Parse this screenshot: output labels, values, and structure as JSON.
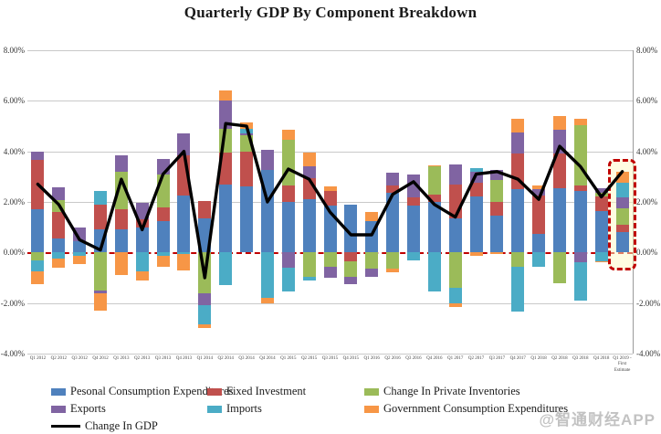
{
  "title": "Quarterly GDP By Component Breakdown",
  "watermark": "@智通财经APP",
  "colors": {
    "pce": "#4f81bd",
    "fixed": "#c0504d",
    "inventories": "#9bbb59",
    "exports": "#8064a2",
    "imports": "#4bacc6",
    "government": "#f79646",
    "gdp_line": "#000000",
    "zero_line": "#c00000",
    "grid": "#c9c9c9",
    "highlight_border": "#c00000",
    "highlight_fill": "#fff9c4"
  },
  "legend": {
    "items": [
      "pce",
      "fixed",
      "inventories",
      "exports",
      "imports",
      "government",
      "gdp_line"
    ]
  },
  "chart_data": {
    "type": "bar",
    "subtype": "stacked-bar-with-line",
    "title": "Quarterly GDP By Component Breakdown",
    "xlabel": "",
    "ylabel": "",
    "ylim": [
      -4,
      8
    ],
    "grid": true,
    "legend_position": "bottom",
    "y_ticks": [
      {
        "value": 8,
        "label": "8.00%"
      },
      {
        "value": 6,
        "label": "6.00%"
      },
      {
        "value": 4,
        "label": "4.00%"
      },
      {
        "value": 2,
        "label": "2.00%"
      },
      {
        "value": 0,
        "label": "0.00%"
      },
      {
        "value": -2,
        "label": "-2.00%"
      },
      {
        "value": -4,
        "label": "-4.00%"
      }
    ],
    "categories": [
      "Q1 2012",
      "Q2 2012",
      "Q3 2012",
      "Q4 2012",
      "Q1 2013",
      "Q2 2013",
      "Q3 2013",
      "Q4 2013",
      "Q1 2014",
      "Q2 2014",
      "Q3 2014",
      "Q4 2014",
      "Q1 2015",
      "Q2 2015",
      "Q3 2015",
      "Q4 2015",
      "Q1 2016",
      "Q2 2016",
      "Q3 2016",
      "Q4 2016",
      "Q1 2017",
      "Q2 2017",
      "Q3 2017",
      "Q4 2017",
      "Q1 2018",
      "Q2 2018",
      "Q3 2018",
      "Q4 2018",
      "Q1 2019 - First Estimate"
    ],
    "series": [
      {
        "key": "pce",
        "name": "Pesonal Consumption Expenditures",
        "values": [
          1.7,
          0.55,
          0.45,
          0.9,
          0.9,
          1.0,
          1.25,
          2.25,
          1.35,
          2.7,
          2.6,
          3.25,
          2.0,
          2.1,
          1.85,
          1.9,
          1.25,
          2.35,
          1.85,
          2.0,
          1.35,
          2.2,
          1.45,
          2.5,
          0.75,
          2.55,
          2.45,
          1.65,
          0.82
        ]
      },
      {
        "key": "fixed",
        "name": "Fixed Investment",
        "values": [
          1.95,
          1.05,
          0.0,
          1.0,
          0.8,
          0.3,
          0.55,
          1.6,
          0.7,
          1.25,
          1.4,
          0.0,
          0.65,
          0.85,
          0.6,
          -0.35,
          0.0,
          0.3,
          0.33,
          0.3,
          1.35,
          0.55,
          0.55,
          1.4,
          1.5,
          1.35,
          0.2,
          0.55,
          0.27
        ]
      },
      {
        "key": "inventories",
        "name": "Change In Private Inventories",
        "values": [
          -0.3,
          0.48,
          0.0,
          -1.5,
          1.5,
          0.0,
          1.3,
          0.0,
          -1.6,
          0.95,
          0.65,
          0.0,
          1.8,
          -0.95,
          -0.55,
          -0.6,
          -0.65,
          -0.65,
          0.0,
          1.1,
          -1.4,
          0.0,
          0.85,
          -0.55,
          0.0,
          -1.2,
          2.4,
          0.15,
          0.65
        ]
      },
      {
        "key": "exports",
        "name": "Exports",
        "values": [
          0.35,
          0.5,
          0.55,
          -0.1,
          0.65,
          0.65,
          0.6,
          0.85,
          -0.5,
          1.1,
          0.05,
          0.8,
          -0.6,
          0.45,
          -0.45,
          -0.3,
          -0.3,
          0.5,
          0.9,
          0.0,
          0.8,
          0.45,
          0.42,
          0.85,
          0.25,
          0.95,
          -0.4,
          0.2,
          0.45
        ]
      },
      {
        "key": "imports",
        "name": "Imports",
        "values": [
          -0.45,
          -0.25,
          -0.15,
          0.55,
          0.0,
          -0.75,
          -0.15,
          -0.05,
          -0.75,
          -1.3,
          0.2,
          -1.8,
          -0.95,
          -0.15,
          0.0,
          0.0,
          0.0,
          0.0,
          -0.3,
          -1.55,
          -0.6,
          0.15,
          0.0,
          -1.8,
          -0.55,
          0.0,
          -1.5,
          -0.35,
          0.58
        ]
      },
      {
        "key": "government",
        "name": "Government Consumption Expenditures",
        "values": [
          -0.5,
          -0.35,
          -0.3,
          -0.7,
          -0.9,
          -0.35,
          -0.4,
          -0.65,
          -0.15,
          0.4,
          0.25,
          -0.2,
          0.4,
          0.55,
          0.15,
          0.0,
          0.35,
          -0.15,
          0.0,
          0.05,
          -0.15,
          -0.15,
          -0.05,
          0.55,
          0.15,
          0.55,
          0.25,
          -0.05,
          0.41
        ]
      }
    ],
    "line_series": {
      "key": "gdp_line",
      "name": "Change In GDP",
      "values": [
        2.7,
        1.9,
        0.5,
        0.1,
        2.9,
        0.9,
        3.1,
        4.0,
        -1.0,
        5.1,
        5.0,
        2.0,
        3.3,
        2.9,
        1.6,
        0.7,
        0.7,
        2.3,
        2.8,
        1.9,
        1.4,
        3.1,
        3.2,
        2.9,
        2.1,
        4.2,
        3.4,
        2.2,
        3.2
      ]
    },
    "highlight": {
      "category": "Q1 2019 - First Estimate",
      "index": 28,
      "from_value": 3.7,
      "to_value": -0.7
    }
  }
}
